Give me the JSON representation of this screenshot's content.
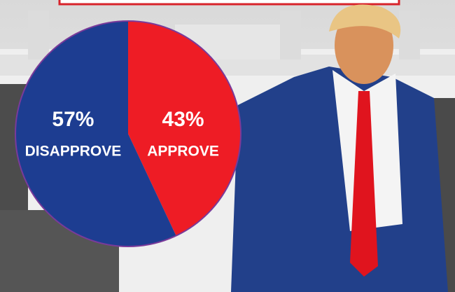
{
  "chart_data": {
    "type": "pie",
    "categories": [
      "APPROVE",
      "DISAPPROVE"
    ],
    "values": [
      43,
      57
    ],
    "value_labels": [
      "43%",
      "57%"
    ],
    "colors": [
      "#ee1c25",
      "#1d3d91"
    ]
  }
}
